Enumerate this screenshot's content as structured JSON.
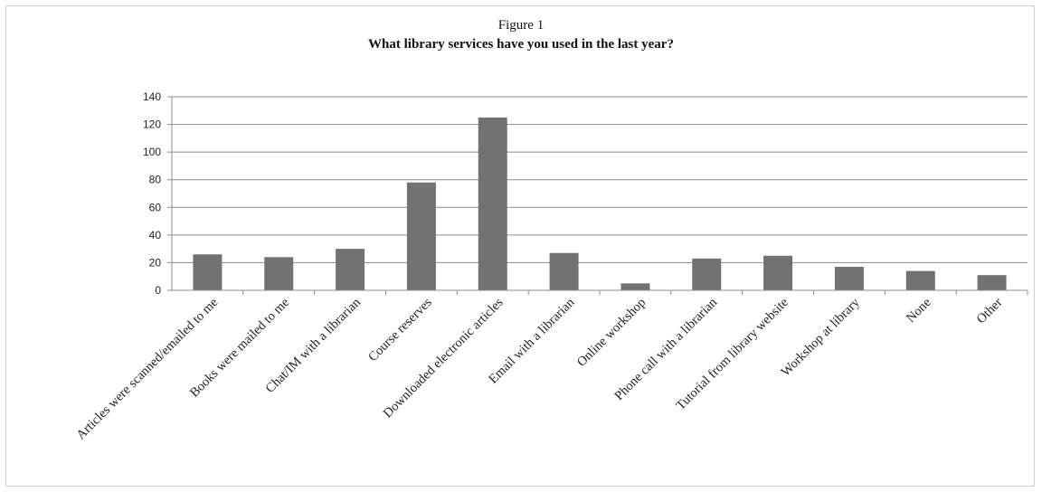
{
  "figure": {
    "label": "Figure 1",
    "title": "What library services have you used in the last year?"
  },
  "chart_data": {
    "type": "bar",
    "title": "What library services have you used in the last year?",
    "xlabel": "",
    "ylabel": "",
    "ylim": [
      0,
      140
    ],
    "yticks": [
      0,
      20,
      40,
      60,
      80,
      100,
      120,
      140
    ],
    "grid": true,
    "legend": "none",
    "bar_color": "#727272",
    "categories": [
      "Articles were scanned/emailed to me",
      "Books were mailed to me",
      "Chat/IM with a librarian",
      "Course reserves",
      "Downloaded electronic articles",
      "Email with a librarian",
      "Online workshop",
      "Phone call with a librarian",
      "Tutorial from library website",
      "Workshop at library",
      "None",
      "Other"
    ],
    "values": [
      26,
      24,
      30,
      78,
      125,
      27,
      5,
      23,
      25,
      17,
      14,
      11
    ]
  }
}
